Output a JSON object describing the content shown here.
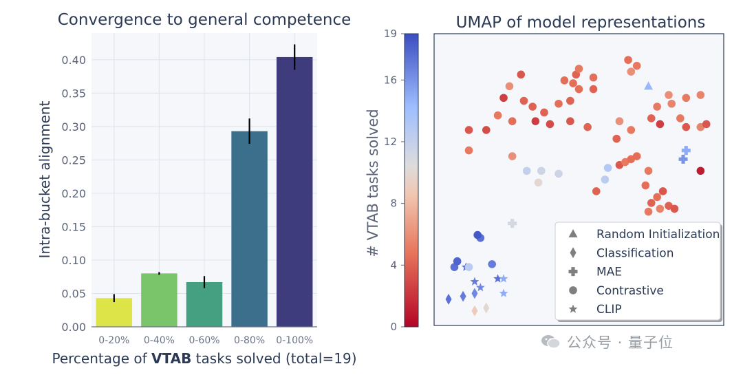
{
  "chart_data": [
    {
      "type": "bar",
      "title": "Convergence to general competence",
      "xlabel_parts": [
        "Percentage of ",
        "VTAB",
        " tasks solved (total=19)"
      ],
      "ylabel": "Intra-bucket alignment",
      "categories": [
        "0-20%",
        "0-40%",
        "0-60%",
        "0-80%",
        "0-100%"
      ],
      "values": [
        0.043,
        0.08,
        0.067,
        0.293,
        0.404
      ],
      "errors": [
        0.006,
        0.002,
        0.009,
        0.019,
        0.019
      ],
      "colors": [
        "#dde447",
        "#7ac56a",
        "#44a080",
        "#3c6f8c",
        "#3e3c7c"
      ],
      "ylim": [
        0,
        0.44
      ],
      "yticks": [
        "0.00",
        "0.05",
        "0.10",
        "0.15",
        "0.20",
        "0.25",
        "0.30",
        "0.35",
        "0.40"
      ],
      "grid": true
    },
    {
      "type": "scatter",
      "title": "UMAP of model representations",
      "colorbar_label": "# VTAB tasks solved",
      "colorbar_ticks": [
        "0",
        "4",
        "8",
        "12",
        "16",
        "19"
      ],
      "colorbar_range": [
        0,
        19
      ],
      "legend_position": "lower-right",
      "legend": [
        {
          "marker": "triangle",
          "label": "Random Initialization"
        },
        {
          "marker": "diamond",
          "label": "Classification"
        },
        {
          "marker": "plus",
          "label": "MAE"
        },
        {
          "marker": "circle",
          "label": "Contrastive"
        },
        {
          "marker": "star",
          "label": "CLIP"
        }
      ],
      "points": [
        [
          0.74,
          0.82,
          14.5,
          "triangle"
        ],
        [
          0.05,
          0.09,
          17.5,
          "diamond"
        ],
        [
          0.1,
          0.1,
          17.0,
          "diamond"
        ],
        [
          0.14,
          0.11,
          16.5,
          "diamond"
        ],
        [
          0.14,
          0.05,
          9.0,
          "diamond"
        ],
        [
          0.18,
          0.06,
          10.0,
          "diamond"
        ],
        [
          0.27,
          0.35,
          11.0,
          "plus"
        ],
        [
          0.87,
          0.6,
          15.0,
          "plus"
        ],
        [
          0.86,
          0.57,
          16.0,
          "plus"
        ],
        [
          0.11,
          0.2,
          17.5,
          "star"
        ],
        [
          0.14,
          0.15,
          17.0,
          "star"
        ],
        [
          0.16,
          0.13,
          16.5,
          "star"
        ],
        [
          0.22,
          0.16,
          17.5,
          "star"
        ],
        [
          0.24,
          0.16,
          15.0,
          "star"
        ],
        [
          0.24,
          0.11,
          15.0,
          "star"
        ],
        [
          0.07,
          0.2,
          17.5,
          "circle"
        ],
        [
          0.08,
          0.22,
          18.0,
          "circle"
        ],
        [
          0.12,
          0.2,
          12.5,
          "circle"
        ],
        [
          0.16,
          0.3,
          17.5,
          "circle"
        ],
        [
          0.15,
          0.31,
          18.5,
          "circle"
        ],
        [
          0.2,
          0.21,
          17.0,
          "circle"
        ],
        [
          0.32,
          0.53,
          12.0,
          "circle"
        ],
        [
          0.37,
          0.53,
          11.5,
          "circle"
        ],
        [
          0.36,
          0.49,
          10.0,
          "circle"
        ],
        [
          0.43,
          0.52,
          11.5,
          "circle"
        ],
        [
          0.6,
          0.54,
          13.0,
          "circle"
        ],
        [
          0.59,
          0.5,
          12.5,
          "circle"
        ],
        [
          0.12,
          0.6,
          5.0,
          "circle"
        ],
        [
          0.27,
          0.58,
          6.0,
          "circle"
        ],
        [
          0.22,
          0.72,
          5.0,
          "circle"
        ],
        [
          0.27,
          0.7,
          4.5,
          "circle"
        ],
        [
          0.35,
          0.7,
          2.5,
          "circle"
        ],
        [
          0.38,
          0.73,
          4.0,
          "circle"
        ],
        [
          0.4,
          0.69,
          3.0,
          "circle"
        ],
        [
          0.24,
          0.78,
          2.5,
          "circle"
        ],
        [
          0.31,
          0.77,
          4.0,
          "circle"
        ],
        [
          0.18,
          0.67,
          3.0,
          "circle"
        ],
        [
          0.12,
          0.67,
          3.5,
          "circle"
        ],
        [
          0.26,
          0.82,
          6.0,
          "circle"
        ],
        [
          0.3,
          0.86,
          3.5,
          "circle"
        ],
        [
          0.34,
          0.75,
          4.0,
          "circle"
        ],
        [
          0.43,
          0.76,
          4.5,
          "circle"
        ],
        [
          0.45,
          0.84,
          4.5,
          "circle"
        ],
        [
          0.49,
          0.86,
          4.0,
          "circle"
        ],
        [
          0.48,
          0.83,
          4.5,
          "circle"
        ],
        [
          0.5,
          0.88,
          5.0,
          "circle"
        ],
        [
          0.5,
          0.81,
          4.5,
          "circle"
        ],
        [
          0.55,
          0.81,
          4.0,
          "circle"
        ],
        [
          0.55,
          0.85,
          4.5,
          "circle"
        ],
        [
          0.47,
          0.77,
          4.0,
          "circle"
        ],
        [
          0.47,
          0.7,
          3.5,
          "circle"
        ],
        [
          0.53,
          0.68,
          4.0,
          "circle"
        ],
        [
          0.67,
          0.91,
          4.5,
          "circle"
        ],
        [
          0.7,
          0.89,
          5.0,
          "circle"
        ],
        [
          0.68,
          0.87,
          6.0,
          "circle"
        ],
        [
          0.64,
          0.7,
          6.0,
          "circle"
        ],
        [
          0.68,
          0.67,
          5.0,
          "circle"
        ],
        [
          0.75,
          0.71,
          4.0,
          "circle"
        ],
        [
          0.78,
          0.69,
          2.5,
          "circle"
        ],
        [
          0.77,
          0.75,
          5.0,
          "circle"
        ],
        [
          0.82,
          0.76,
          5.5,
          "circle"
        ],
        [
          0.85,
          0.71,
          5.0,
          "circle"
        ],
        [
          0.87,
          0.68,
          3.5,
          "circle"
        ],
        [
          0.81,
          0.79,
          6.0,
          "circle"
        ],
        [
          0.87,
          0.78,
          5.0,
          "circle"
        ],
        [
          0.92,
          0.79,
          5.5,
          "circle"
        ],
        [
          0.92,
          0.68,
          5.5,
          "circle"
        ],
        [
          0.94,
          0.69,
          3.5,
          "circle"
        ],
        [
          0.64,
          0.55,
          3.5,
          "circle"
        ],
        [
          0.66,
          0.56,
          5.0,
          "circle"
        ],
        [
          0.68,
          0.57,
          4.5,
          "circle"
        ],
        [
          0.7,
          0.58,
          4.5,
          "circle"
        ],
        [
          0.63,
          0.64,
          4.0,
          "circle"
        ],
        [
          0.74,
          0.53,
          5.0,
          "circle"
        ],
        [
          0.73,
          0.48,
          4.5,
          "circle"
        ],
        [
          0.79,
          0.46,
          3.5,
          "circle"
        ],
        [
          0.75,
          0.42,
          4.0,
          "circle"
        ],
        [
          0.74,
          0.39,
          5.0,
          "circle"
        ],
        [
          0.78,
          0.4,
          5.5,
          "circle"
        ],
        [
          0.81,
          0.41,
          4.0,
          "circle"
        ],
        [
          0.83,
          0.4,
          3.5,
          "circle"
        ],
        [
          0.77,
          0.44,
          4.5,
          "circle"
        ],
        [
          0.92,
          0.53,
          1.0,
          "circle"
        ],
        [
          0.56,
          0.46,
          4.0,
          "circle"
        ]
      ]
    }
  ],
  "watermark": "公众号 · 量子位"
}
